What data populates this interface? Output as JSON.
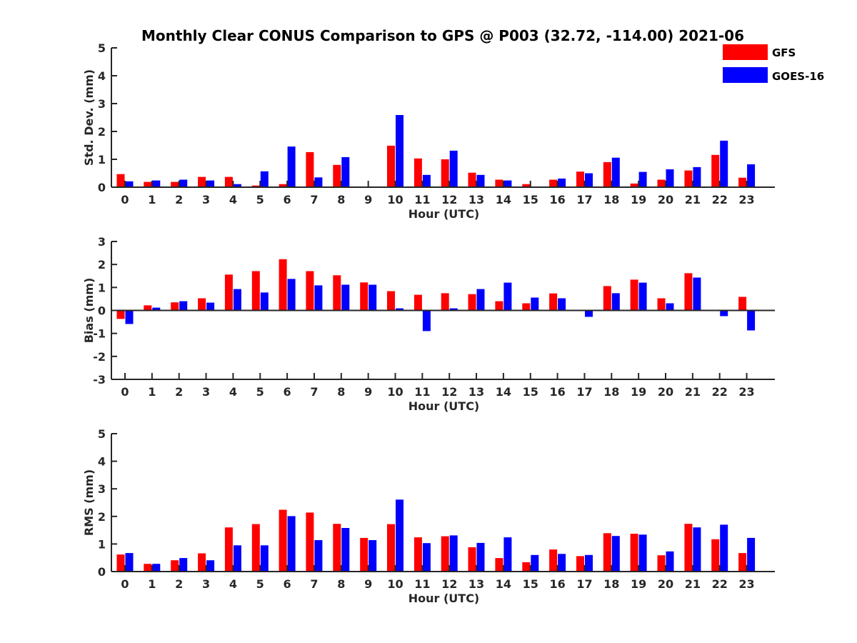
{
  "chart_data": {
    "title": "Monthly Clear CONUS Comparison to GPS @ P003 (32.72, -114.00) 2021-06",
    "type": "bar",
    "legend": {
      "placement": "top-right",
      "entries": [
        {
          "name": "GFS",
          "color": "#ff0000"
        },
        {
          "name": "GOES-16",
          "color": "#0000ff"
        }
      ]
    },
    "panels": [
      {
        "type": "bar",
        "xlabel": "Hour (UTC)",
        "ylabel": "Std. Dev. (mm)",
        "ylim": [
          0,
          5
        ],
        "yticks": [
          "0",
          "1",
          "2",
          "3",
          "4",
          "5"
        ],
        "categories": [
          "0",
          "1",
          "2",
          "3",
          "4",
          "5",
          "6",
          "7",
          "8",
          "9",
          "10",
          "11",
          "12",
          "13",
          "14",
          "15",
          "16",
          "17",
          "18",
          "19",
          "20",
          "21",
          "22",
          "23"
        ],
        "series": [
          {
            "name": "GFS",
            "values": [
              0.47,
              0.19,
              0.19,
              0.37,
              0.37,
              0.06,
              0.11,
              1.26,
              0.8,
              0.0,
              1.49,
              1.03,
              1.0,
              0.52,
              0.27,
              0.11,
              0.27,
              0.56,
              0.9,
              0.13,
              0.27,
              0.6,
              1.16,
              0.34
            ]
          },
          {
            "name": "GOES-16",
            "values": [
              0.21,
              0.24,
              0.27,
              0.24,
              0.11,
              0.57,
              1.46,
              0.35,
              1.08,
              0.0,
              2.59,
              0.44,
              1.31,
              0.44,
              0.24,
              0.0,
              0.31,
              0.5,
              1.06,
              0.55,
              0.64,
              0.72,
              1.67,
              0.82
            ]
          }
        ]
      },
      {
        "type": "bar",
        "xlabel": "Hour (UTC)",
        "ylabel": "Bias (mm)",
        "ylim": [
          -3,
          3
        ],
        "yticks": [
          "-3",
          "-2",
          "-1",
          "0",
          "1",
          "2",
          "3"
        ],
        "categories": [
          "0",
          "1",
          "2",
          "3",
          "4",
          "5",
          "6",
          "7",
          "8",
          "9",
          "10",
          "11",
          "12",
          "13",
          "14",
          "15",
          "16",
          "17",
          "18",
          "19",
          "20",
          "21",
          "22",
          "23"
        ],
        "series": [
          {
            "name": "GFS",
            "values": [
              -0.37,
              0.22,
              0.35,
              0.53,
              1.56,
              1.71,
              2.23,
              1.71,
              1.53,
              1.22,
              0.84,
              0.68,
              0.75,
              0.71,
              0.4,
              0.31,
              0.74,
              0.0,
              1.06,
              1.34,
              0.53,
              1.62,
              0.0,
              0.59
            ]
          },
          {
            "name": "GOES-16",
            "values": [
              -0.59,
              0.12,
              0.4,
              0.34,
              0.93,
              0.78,
              1.37,
              1.09,
              1.12,
              1.12,
              0.09,
              -0.9,
              0.09,
              0.93,
              1.21,
              0.56,
              0.53,
              -0.28,
              0.75,
              1.21,
              0.31,
              1.43,
              -0.25,
              -0.87
            ]
          }
        ]
      },
      {
        "type": "bar",
        "xlabel": "Hour (UTC)",
        "ylabel": "RMS (mm)",
        "ylim": [
          0,
          5
        ],
        "yticks": [
          "0",
          "1",
          "2",
          "3",
          "4",
          "5"
        ],
        "categories": [
          "0",
          "1",
          "2",
          "3",
          "4",
          "5",
          "6",
          "7",
          "8",
          "9",
          "10",
          "11",
          "12",
          "13",
          "14",
          "15",
          "16",
          "17",
          "18",
          "19",
          "20",
          "21",
          "22",
          "23"
        ],
        "series": [
          {
            "name": "GFS",
            "values": [
              0.62,
              0.28,
              0.41,
              0.66,
              1.6,
              1.72,
              2.24,
              2.14,
              1.73,
              1.22,
              1.72,
              1.24,
              1.28,
              0.88,
              0.49,
              0.34,
              0.8,
              0.56,
              1.39,
              1.37,
              0.59,
              1.73,
              1.17,
              0.67
            ]
          },
          {
            "name": "GOES-16",
            "values": [
              0.67,
              0.28,
              0.49,
              0.41,
              0.95,
              0.95,
              2.01,
              1.14,
              1.58,
              1.14,
              2.61,
              1.03,
              1.31,
              1.04,
              1.24,
              0.6,
              0.64,
              0.6,
              1.29,
              1.34,
              0.73,
              1.6,
              1.7,
              1.22
            ]
          }
        ]
      }
    ]
  }
}
